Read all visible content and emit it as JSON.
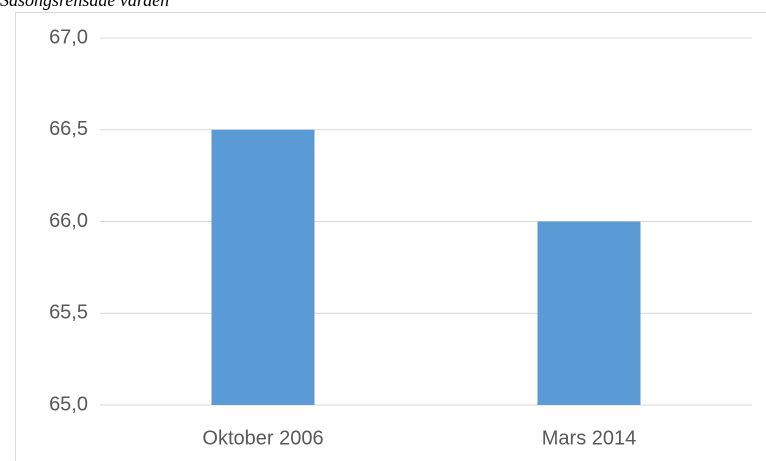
{
  "chart_data": {
    "type": "bar",
    "subtitle": "Säsongsrensade värden",
    "categories": [
      "Oktober 2006",
      "Mars 2014"
    ],
    "values": [
      66.5,
      66.0
    ],
    "color": "#5b9bd5",
    "ylim": [
      65.0,
      67.0
    ],
    "yticks": [
      {
        "value": 65.0,
        "label": "65,0"
      },
      {
        "value": 65.5,
        "label": "65,5"
      },
      {
        "value": 66.0,
        "label": "66,0"
      },
      {
        "value": 66.5,
        "label": "66,5"
      },
      {
        "value": 67.0,
        "label": "67,0"
      }
    ],
    "grid": true
  }
}
